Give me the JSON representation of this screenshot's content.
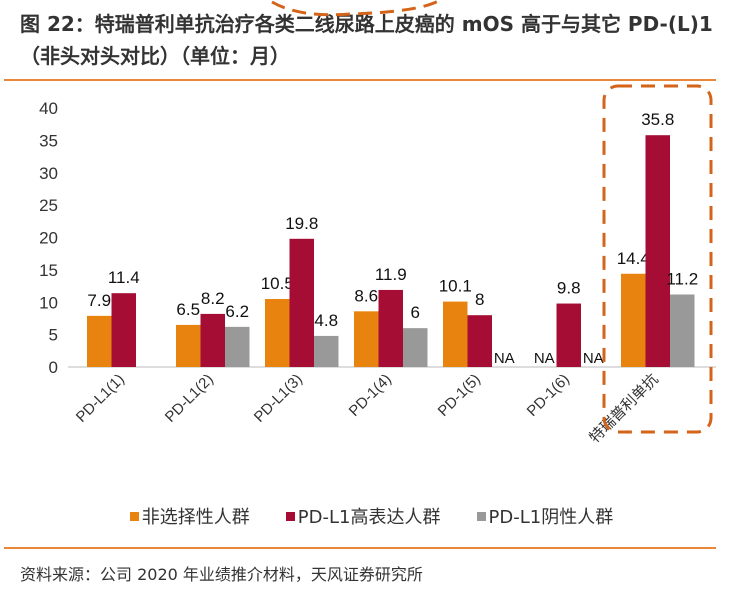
{
  "title": "图 22：特瑞普利单抗治疗各类二线尿路上皮癌的 mOS 高于与其它 PD-(L)1（非头对头对比）（单位：月）",
  "source": "资料来源：公司 2020 年业绩推介材料，天风证券研究所",
  "chart_data": {
    "type": "bar",
    "categories": [
      "PD-L1(1)",
      "PD-L1(2)",
      "PD-L1(3)",
      "PD-1(4)",
      "PD-1(5)",
      "PD-1(6)",
      "特瑞普利单抗"
    ],
    "series": [
      {
        "name": "非选择性人群",
        "color": "#E8830F",
        "values": [
          7.9,
          6.5,
          10.5,
          8.6,
          10.1,
          null,
          14.4
        ],
        "labels": [
          "7.9",
          "6.5",
          "10.5",
          "8.6",
          "10.1",
          "NA",
          "14.4"
        ]
      },
      {
        "name": "PD-L1高表达人群",
        "color": "#A50D34",
        "values": [
          11.4,
          8.2,
          19.8,
          11.9,
          8,
          9.8,
          35.8
        ],
        "labels": [
          "11.4",
          "8.2",
          "19.8",
          "11.9",
          "8",
          "9.8",
          "35.8"
        ]
      },
      {
        "name": "PD-L1阴性人群",
        "color": "#999999",
        "values": [
          null,
          6.2,
          4.8,
          6,
          null,
          null,
          11.2
        ],
        "labels": [
          "",
          "6.2",
          "4.8",
          "6",
          "NA",
          "NA",
          "11.2"
        ]
      }
    ],
    "ylim": [
      0,
      40
    ],
    "yticks": [
      0,
      5,
      10,
      15,
      20,
      25,
      30,
      35,
      40
    ],
    "grid": false,
    "legend": "bottom",
    "highlight": {
      "category": "特瑞普利单抗",
      "style": "dashed-box",
      "color": "#D4641A"
    }
  }
}
